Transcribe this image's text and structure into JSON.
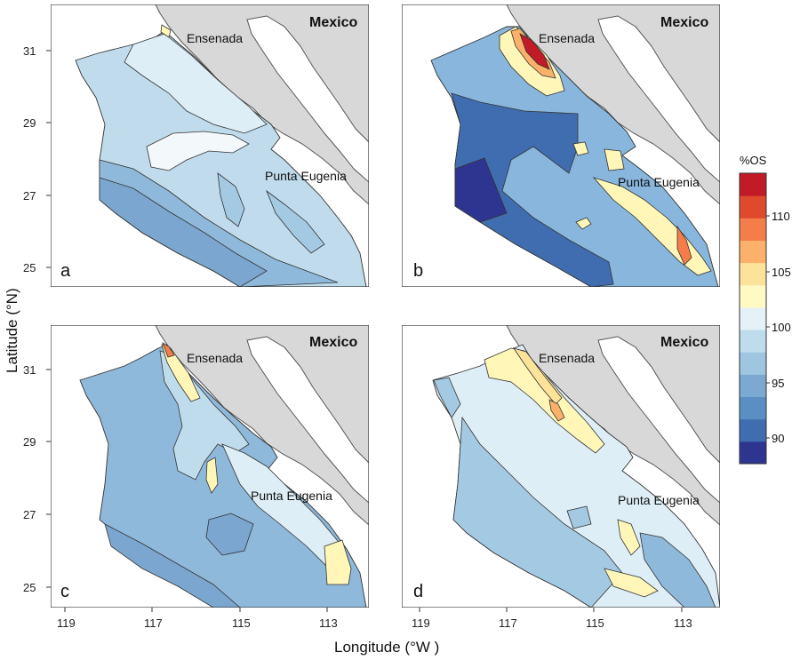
{
  "figure": {
    "x_axis_title": "Longitude (°W )",
    "y_axis_title": "Latitude (°N)",
    "x_ticks": [
      "119",
      "117",
      "115",
      "113"
    ],
    "y_ticks": [
      "31",
      "29",
      "27",
      "25"
    ]
  },
  "panels": [
    {
      "letter": "a",
      "country": "Mexico",
      "city": "Ensenada",
      "cape": "Punta Eugenia"
    },
    {
      "letter": "b",
      "country": "Mexico",
      "city": "Ensenada",
      "cape": "Punta Eugenia"
    },
    {
      "letter": "c",
      "country": "Mexico",
      "city": "Ensenada",
      "cape": "Punta Eugenia"
    },
    {
      "letter": "d",
      "country": "Mexico",
      "city": "Ensenada",
      "cape": "Punta Eugenia"
    }
  ],
  "colorbar": {
    "title": "%OS",
    "labels": [
      "110",
      "105",
      "100",
      "95",
      "90"
    ],
    "colors": [
      "#2e3590",
      "#3f6db0",
      "#5b8fc4",
      "#7ba9d2",
      "#9ec6e1",
      "#bfdcec",
      "#e4f1f7",
      "#fff9c4",
      "#fde29a",
      "#fbb16a",
      "#f47d4a",
      "#e04a2c",
      "#c21a27"
    ]
  }
}
